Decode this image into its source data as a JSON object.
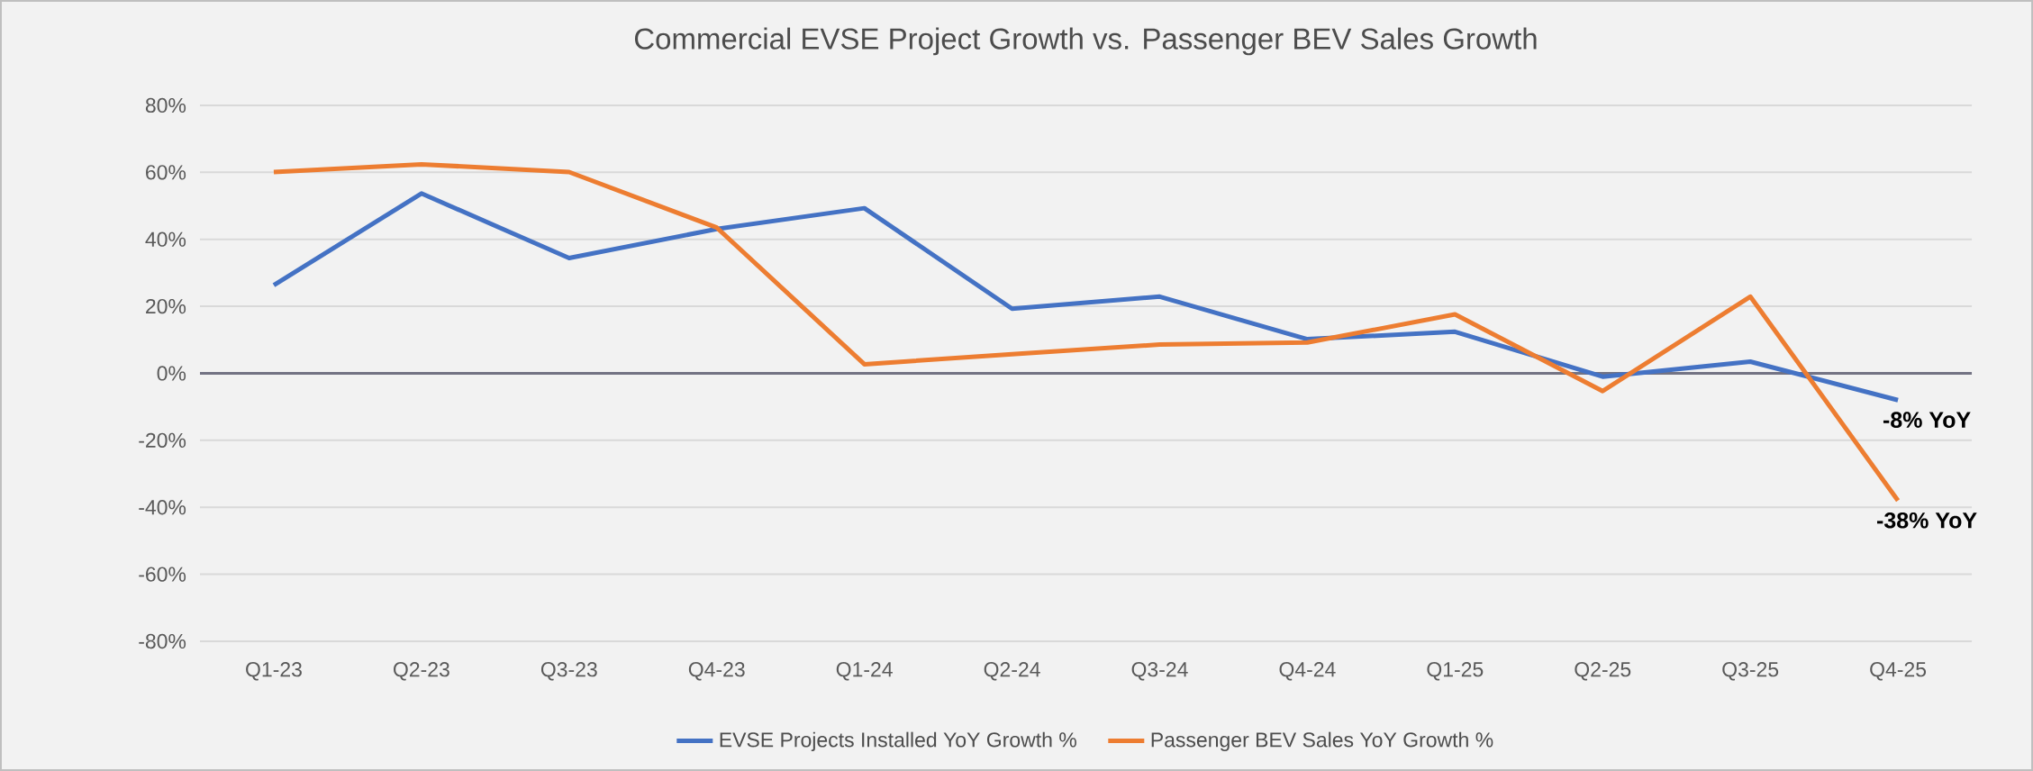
{
  "chart_data": {
    "type": "line",
    "title": "Commercial EVSE Project Growth vs. Passenger BEV Sales Growth",
    "categories": [
      "Q1-23",
      "Q2-23",
      "Q3-23",
      "Q4-23",
      "Q1-24",
      "Q2-24",
      "Q3-24",
      "Q4-24",
      "Q1-25",
      "Q2-25",
      "Q3-25",
      "Q4-25"
    ],
    "series": [
      {
        "name": "EVSE Projects Installed YoY Growth %",
        "color": "#4472c4",
        "values": [
          26.3,
          53.7,
          34.4,
          43.1,
          49.3,
          19.3,
          22.9,
          10.2,
          12.4,
          -1,
          3.5,
          -8
        ]
      },
      {
        "name": "Passenger BEV Sales YoY Growth %",
        "color": "#ed7d31",
        "values": [
          60.1,
          62.4,
          60.1,
          43.5,
          2.7,
          5.7,
          8.6,
          9.2,
          17.6,
          -5.3,
          22.9,
          -38
        ]
      }
    ],
    "ylim": [
      -80,
      80
    ],
    "yticks": [
      {
        "value": -80,
        "label": "-80%"
      },
      {
        "value": -60,
        "label": "-60%"
      },
      {
        "value": -40,
        "label": "-40%"
      },
      {
        "value": -20,
        "label": "-20%"
      },
      {
        "value": 0,
        "label": "0%"
      },
      {
        "value": 20,
        "label": "20%"
      },
      {
        "value": 40,
        "label": "40%"
      },
      {
        "value": 60,
        "label": "60%"
      },
      {
        "value": 80,
        "label": "80%"
      }
    ],
    "annotations": [
      {
        "text": "-8% YoY",
        "x": "Q4-25",
        "y": -8
      },
      {
        "text": "-38% YoY",
        "x": "Q4-25",
        "y": -38
      }
    ],
    "grid": "y",
    "legend": "bottom",
    "marker": "none",
    "line_style": "solid"
  }
}
